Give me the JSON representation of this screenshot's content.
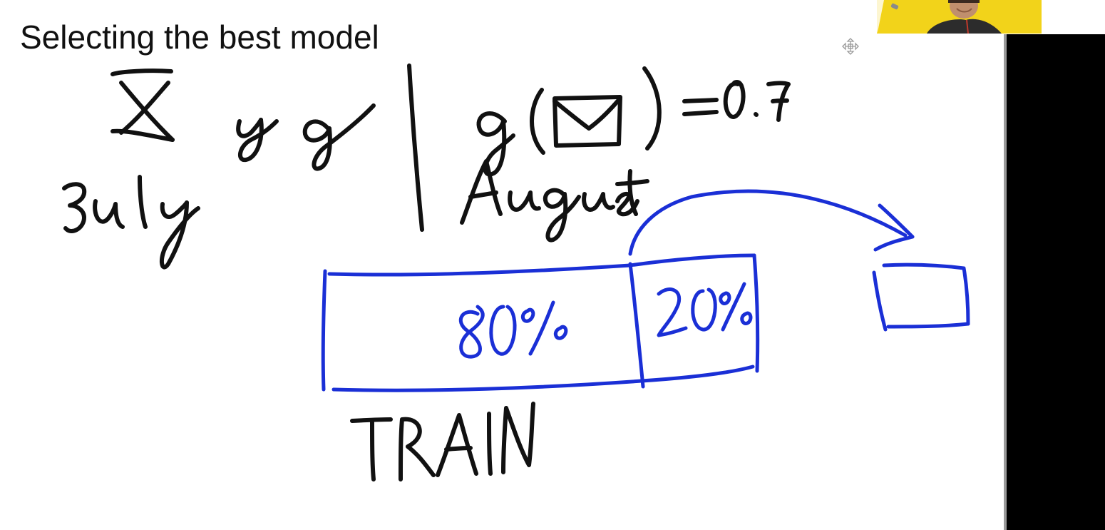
{
  "slide": {
    "title": "Selecting the best model"
  },
  "colors": {
    "ink_black": "#111111",
    "ink_blue": "#1a2fd6",
    "webcam_bg": "#f2d31a",
    "panel": "#000000"
  },
  "icons": {
    "cursor": "move-cursor-icon",
    "envelope": "envelope-icon"
  }
}
